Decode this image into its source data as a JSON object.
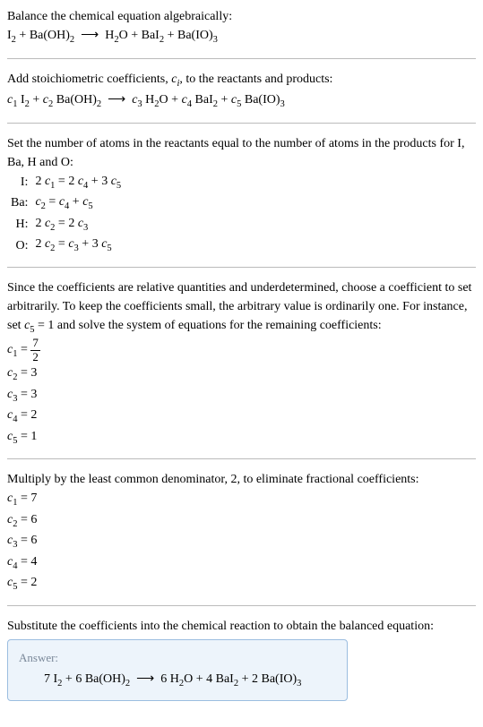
{
  "intro": {
    "title": "Balance the chemical equation algebraically:",
    "equation": "I₂ + Ba(OH)₂ ⟶ H₂O + BaI₂ + Ba(IO)₃"
  },
  "step1": {
    "text_before": "Add stoichiometric coefficients, ",
    "ci": "cᵢ",
    "text_after": ", to the reactants and products:",
    "equation": "c₁ I₂ + c₂ Ba(OH)₂ ⟶ c₃ H₂O + c₄ BaI₂ + c₅ Ba(IO)₃"
  },
  "step2": {
    "text": "Set the number of atoms in the reactants equal to the number of atoms in the products for I, Ba, H and O:",
    "rows": [
      {
        "label": "I:",
        "eq": "2 c₁ = 2 c₄ + 3 c₅"
      },
      {
        "label": "Ba:",
        "eq": "c₂ = c₄ + c₅"
      },
      {
        "label": "H:",
        "eq": "2 c₂ = 2 c₃"
      },
      {
        "label": "O:",
        "eq": "2 c₂ = c₃ + 3 c₅"
      }
    ]
  },
  "step3": {
    "text": "Since the coefficients are relative quantities and underdetermined, choose a coefficient to set arbitrarily. To keep the coefficients small, the arbitrary value is ordinarily one. For instance, set c₅ = 1 and solve the system of equations for the remaining coefficients:",
    "rows": [
      {
        "label": "c₁ =",
        "val": "7/2",
        "isFrac": true,
        "num": "7",
        "den": "2"
      },
      {
        "label": "c₂ =",
        "val": "3"
      },
      {
        "label": "c₃ =",
        "val": "3"
      },
      {
        "label": "c₄ =",
        "val": "2"
      },
      {
        "label": "c₅ =",
        "val": "1"
      }
    ]
  },
  "step4": {
    "text": "Multiply by the least common denominator, 2, to eliminate fractional coefficients:",
    "rows": [
      {
        "label": "c₁ =",
        "val": "7"
      },
      {
        "label": "c₂ =",
        "val": "6"
      },
      {
        "label": "c₃ =",
        "val": "6"
      },
      {
        "label": "c₄ =",
        "val": "4"
      },
      {
        "label": "c₅ =",
        "val": "2"
      }
    ]
  },
  "step5": {
    "text": "Substitute the coefficients into the chemical reaction to obtain the balanced equation:"
  },
  "answer": {
    "label": "Answer:",
    "equation": "7 I₂ + 6 Ba(OH)₂ ⟶ 6 H₂O + 4 BaI₂ + 2 Ba(IO)₃"
  },
  "colors": {
    "text": "#000000",
    "divider": "#bbbbbb",
    "answer_bg": "#edf4fb",
    "answer_border": "#9bbde0",
    "answer_label": "#7a8899"
  }
}
